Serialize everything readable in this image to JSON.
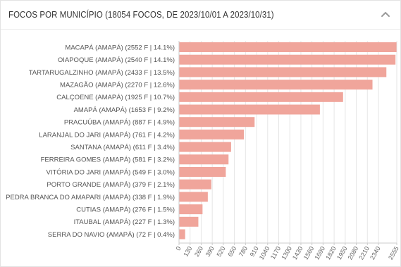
{
  "header": {
    "title": "FOCOS POR MUNICÍPIO (18054 FOCOS, DE 2023/10/01 A 2023/10/31)",
    "collapse_icon": "chevron-up-icon"
  },
  "colors": {
    "bar": "#f0a59b",
    "grid": "#e6e6e6",
    "axis": "#cccccc"
  },
  "chart_data": {
    "type": "bar",
    "orientation": "horizontal",
    "title": "FOCOS POR MUNICÍPIO (18054 FOCOS, DE 2023/10/01 A 2023/10/31)",
    "categories": [
      "MACAPÁ (AMAPÁ) (2552 F | 14.1%)",
      "OIAPOQUE (AMAPÁ) (2540 F | 14.1%)",
      "TARTARUGALZINHO (AMAPÁ) (2433 F | 13.5%)",
      "MAZAGÃO (AMAPÁ) (2270 F | 12.6%)",
      "CALÇOENE (AMAPÁ) (1925 F | 10.7%)",
      "AMAPÁ (AMAPÁ) (1653 F | 9.2%)",
      "PRACUÚBA (AMAPÁ) (887 F | 4.9%)",
      "LARANJAL DO JARI (AMAPÁ) (761 F | 4.2%)",
      "SANTANA (AMAPÁ) (611 F | 3.4%)",
      "FERREIRA GOMES (AMAPÁ) (581 F | 3.2%)",
      "VITÓRIA DO JARI (AMAPÁ) (549 F | 3.0%)",
      "PORTO GRANDE (AMAPÁ) (379 F | 2.1%)",
      "PEDRA BRANCA DO AMAPARI (AMAPÁ) (338 F | 1.9%)",
      "CUTIAS (AMAPÁ) (276 F | 1.5%)",
      "ITAUBAL (AMAPÁ) (227 F | 1.3%)",
      "SERRA DO NAVIO (AMAPÁ) (72 F | 0.4%)"
    ],
    "values": [
      2552,
      2540,
      2433,
      2270,
      1925,
      1653,
      887,
      761,
      611,
      581,
      549,
      379,
      338,
      276,
      227,
      72
    ],
    "x_ticks": [
      "0",
      "130",
      "260",
      "390",
      "520",
      "650",
      "780",
      "910",
      "1040",
      "1170",
      "1300",
      "1430",
      "1560",
      "1690",
      "1820",
      "1950",
      "2080",
      "2210",
      "2340",
      "2555"
    ],
    "x_tick_values": [
      0,
      130,
      260,
      390,
      520,
      650,
      780,
      910,
      1040,
      1170,
      1300,
      1430,
      1560,
      1690,
      1820,
      1950,
      2080,
      2210,
      2340,
      2555
    ],
    "xlim": [
      0,
      2555
    ],
    "grid": true,
    "xlabel": "",
    "ylabel": ""
  }
}
